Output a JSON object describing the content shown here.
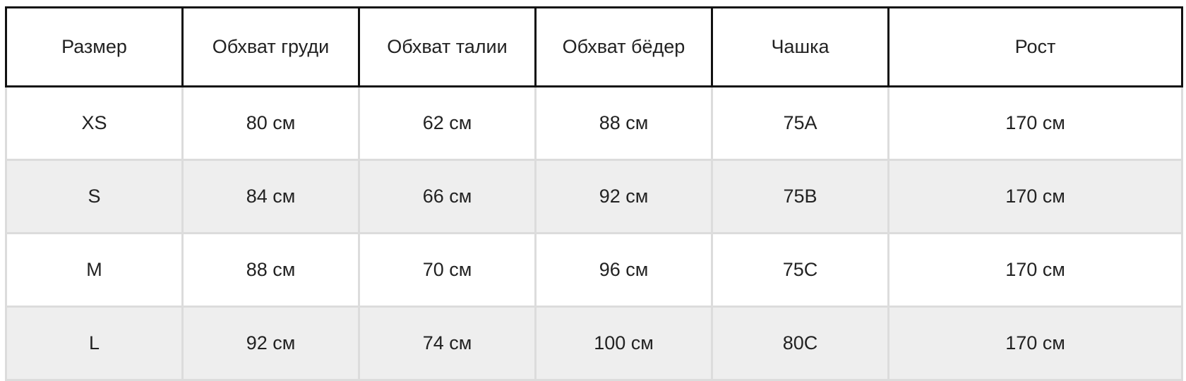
{
  "table": {
    "headers": [
      "Размер",
      "Обхват груди",
      "Обхват талии",
      "Обхват бёдер",
      "Чашка",
      "Рост"
    ],
    "rows": [
      [
        "XS",
        "80 см",
        "62 см",
        "88 см",
        "75A",
        "170 см"
      ],
      [
        "S",
        "84 см",
        "66 см",
        "92 см",
        "75B",
        "170 см"
      ],
      [
        "M",
        "88 см",
        "70 см",
        "96 см",
        "75C",
        "170 см"
      ],
      [
        "L",
        "92 см",
        "74 см",
        "100 см",
        "80C",
        "170 см"
      ]
    ]
  },
  "colors": {
    "header_border": "#111111",
    "cell_border": "#dcdcdc",
    "alt_row": "#eeeeee"
  }
}
